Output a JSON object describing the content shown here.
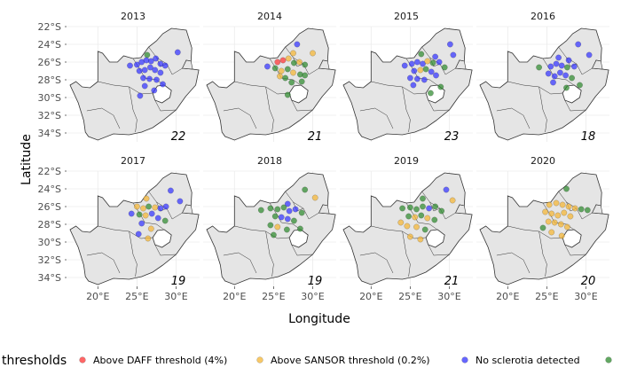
{
  "chart_data": {
    "type": "scatter",
    "xlabel": "Longitude",
    "ylabel": "Latitude",
    "x_ticks": [
      "20°E",
      "25°E",
      "30°E"
    ],
    "y_ticks": [
      "22°S",
      "24°S",
      "26°S",
      "28°S",
      "30°S",
      "32°S",
      "34°S"
    ],
    "xlim": [
      16,
      33
    ],
    "ylim": [
      -35,
      -22
    ],
    "legend": {
      "title": "thresholds",
      "position": "bottom",
      "entries": [
        {
          "label": "Above DAFF threshold (4%)",
          "color": "#ff3333"
        },
        {
          "label": "Above SANSOR threshold (0.2%)",
          "color": "#f5b533"
        },
        {
          "label": "No sclerotia detected",
          "color": "#3333ff"
        },
        {
          "label": "",
          "color": "#2e8b2e"
        }
      ]
    },
    "colors": {
      "red": "#ff3333",
      "orange": "#f5b533",
      "blue": "#3333ff",
      "green": "#2e8b2e",
      "land": "#e5e5e5",
      "border": "#333333",
      "grid": "#ebebeb"
    },
    "panels": [
      {
        "year": "2013",
        "count": "22",
        "points": [
          [
            26.3,
            -25.2,
            "g"
          ],
          [
            30.2,
            -24.9,
            "b"
          ],
          [
            24.1,
            -26.4,
            "b"
          ],
          [
            25.0,
            -26.3,
            "b"
          ],
          [
            25.6,
            -26.0,
            "b"
          ],
          [
            26.2,
            -25.8,
            "b"
          ],
          [
            26.8,
            -25.9,
            "b"
          ],
          [
            27.4,
            -25.6,
            "b"
          ],
          [
            28.0,
            -26.2,
            "b"
          ],
          [
            28.6,
            -26.4,
            "b"
          ],
          [
            25.3,
            -27.0,
            "b"
          ],
          [
            26.0,
            -26.9,
            "b"
          ],
          [
            26.7,
            -26.6,
            "b"
          ],
          [
            27.3,
            -26.9,
            "b"
          ],
          [
            28.0,
            -27.2,
            "b"
          ],
          [
            25.8,
            -27.8,
            "b"
          ],
          [
            26.6,
            -27.9,
            "b"
          ],
          [
            27.5,
            -28.0,
            "b"
          ],
          [
            28.3,
            -28.5,
            "b"
          ],
          [
            26.0,
            -28.7,
            "b"
          ],
          [
            27.2,
            -29.2,
            "b"
          ],
          [
            25.4,
            -29.8,
            "b"
          ]
        ]
      },
      {
        "year": "2014",
        "count": "21",
        "points": [
          [
            28.0,
            -24.0,
            "b"
          ],
          [
            27.5,
            -25.0,
            "o"
          ],
          [
            30.0,
            -25.0,
            "o"
          ],
          [
            25.5,
            -26.0,
            "r"
          ],
          [
            26.2,
            -25.8,
            "r"
          ],
          [
            26.9,
            -25.6,
            "o"
          ],
          [
            27.6,
            -26.1,
            "g"
          ],
          [
            28.3,
            -26.0,
            "o"
          ],
          [
            29.0,
            -26.3,
            "g"
          ],
          [
            24.2,
            -26.5,
            "b"
          ],
          [
            25.2,
            -26.7,
            "g"
          ],
          [
            26.0,
            -27.0,
            "o"
          ],
          [
            26.8,
            -26.8,
            "g"
          ],
          [
            27.5,
            -27.2,
            "o"
          ],
          [
            28.4,
            -27.4,
            "g"
          ],
          [
            29.0,
            -27.5,
            "g"
          ],
          [
            25.8,
            -27.6,
            "o"
          ],
          [
            26.5,
            -27.8,
            "g"
          ],
          [
            27.3,
            -28.3,
            "g"
          ],
          [
            28.6,
            -28.2,
            "g"
          ],
          [
            26.8,
            -29.7,
            "g"
          ]
        ]
      },
      {
        "year": "2015",
        "count": "23",
        "points": [
          [
            30.1,
            -24.0,
            "b"
          ],
          [
            26.4,
            -25.1,
            "g"
          ],
          [
            28.2,
            -25.4,
            "b"
          ],
          [
            30.5,
            -25.2,
            "b"
          ],
          [
            24.3,
            -26.4,
            "b"
          ],
          [
            25.2,
            -26.2,
            "b"
          ],
          [
            25.9,
            -26.0,
            "b"
          ],
          [
            26.6,
            -26.2,
            "b"
          ],
          [
            27.2,
            -25.9,
            "o"
          ],
          [
            27.9,
            -26.1,
            "g"
          ],
          [
            28.7,
            -26.0,
            "b"
          ],
          [
            29.4,
            -26.6,
            "g"
          ],
          [
            25.5,
            -27.0,
            "b"
          ],
          [
            26.3,
            -26.9,
            "o"
          ],
          [
            27.0,
            -26.8,
            "g"
          ],
          [
            27.7,
            -27.1,
            "b"
          ],
          [
            28.3,
            -27.5,
            "b"
          ],
          [
            25.0,
            -27.8,
            "b"
          ],
          [
            25.9,
            -27.9,
            "b"
          ],
          [
            26.8,
            -28.0,
            "b"
          ],
          [
            28.9,
            -28.8,
            "g"
          ],
          [
            25.4,
            -28.6,
            "b"
          ],
          [
            27.6,
            -29.5,
            "g"
          ]
        ]
      },
      {
        "year": "2016",
        "count": "18",
        "points": [
          [
            29.0,
            -24.0,
            "b"
          ],
          [
            26.5,
            -25.5,
            "b"
          ],
          [
            27.8,
            -25.8,
            "b"
          ],
          [
            30.4,
            -25.2,
            "b"
          ],
          [
            24.0,
            -26.6,
            "g"
          ],
          [
            25.5,
            -26.5,
            "b"
          ],
          [
            26.2,
            -26.2,
            "b"
          ],
          [
            26.9,
            -26.4,
            "b"
          ],
          [
            27.6,
            -26.6,
            "g"
          ],
          [
            28.5,
            -26.5,
            "b"
          ],
          [
            25.2,
            -27.3,
            "b"
          ],
          [
            26.0,
            -27.6,
            "b"
          ],
          [
            26.7,
            -27.2,
            "b"
          ],
          [
            27.4,
            -27.5,
            "b"
          ],
          [
            28.2,
            -27.8,
            "g"
          ],
          [
            25.8,
            -28.3,
            "b"
          ],
          [
            27.5,
            -28.9,
            "g"
          ],
          [
            29.2,
            -28.6,
            "g"
          ]
        ]
      },
      {
        "year": "2017",
        "count": "19",
        "points": [
          [
            29.3,
            -24.2,
            "b"
          ],
          [
            26.2,
            -25.1,
            "o"
          ],
          [
            30.5,
            -25.4,
            "b"
          ],
          [
            25.0,
            -26.0,
            "o"
          ],
          [
            25.8,
            -26.2,
            "o"
          ],
          [
            26.5,
            -26.0,
            "g"
          ],
          [
            27.3,
            -26.1,
            "o"
          ],
          [
            28.0,
            -26.2,
            "b"
          ],
          [
            28.7,
            -26.0,
            "b"
          ],
          [
            24.3,
            -26.8,
            "b"
          ],
          [
            25.3,
            -26.9,
            "g"
          ],
          [
            26.1,
            -27.0,
            "o"
          ],
          [
            26.9,
            -26.8,
            "b"
          ],
          [
            27.7,
            -27.3,
            "b"
          ],
          [
            28.6,
            -27.6,
            "g"
          ],
          [
            25.6,
            -27.9,
            "b"
          ],
          [
            26.8,
            -28.5,
            "o"
          ],
          [
            25.2,
            -29.1,
            "b"
          ],
          [
            26.4,
            -29.6,
            "o"
          ]
        ]
      },
      {
        "year": "2018",
        "count": "19",
        "points": [
          [
            29.0,
            -24.1,
            "g"
          ],
          [
            26.8,
            -25.7,
            "b"
          ],
          [
            30.3,
            -25.0,
            "o"
          ],
          [
            23.4,
            -26.4,
            "g"
          ],
          [
            24.6,
            -26.2,
            "g"
          ],
          [
            25.5,
            -26.3,
            "g"
          ],
          [
            26.3,
            -26.1,
            "g"
          ],
          [
            27.0,
            -26.5,
            "b"
          ],
          [
            27.8,
            -26.3,
            "b"
          ],
          [
            28.6,
            -26.7,
            "g"
          ],
          [
            25.2,
            -27.1,
            "g"
          ],
          [
            26.0,
            -27.2,
            "b"
          ],
          [
            26.8,
            -27.4,
            "b"
          ],
          [
            27.6,
            -27.6,
            "g"
          ],
          [
            24.6,
            -28.1,
            "g"
          ],
          [
            25.5,
            -28.3,
            "o"
          ],
          [
            26.7,
            -28.6,
            "g"
          ],
          [
            28.4,
            -28.5,
            "g"
          ],
          [
            25.0,
            -29.2,
            "g"
          ]
        ]
      },
      {
        "year": "2019",
        "count": "21",
        "points": [
          [
            29.6,
            -24.1,
            "b"
          ],
          [
            26.6,
            -25.1,
            "g"
          ],
          [
            30.4,
            -25.3,
            "o"
          ],
          [
            24.0,
            -26.2,
            "g"
          ],
          [
            25.0,
            -26.1,
            "g"
          ],
          [
            25.8,
            -26.3,
            "g"
          ],
          [
            26.6,
            -26.0,
            "g"
          ],
          [
            27.4,
            -26.2,
            "b"
          ],
          [
            28.2,
            -26.0,
            "g"
          ],
          [
            29.0,
            -26.5,
            "g"
          ],
          [
            24.8,
            -27.1,
            "g"
          ],
          [
            25.6,
            -27.2,
            "o"
          ],
          [
            26.4,
            -27.0,
            "g"
          ],
          [
            27.2,
            -27.3,
            "o"
          ],
          [
            28.1,
            -27.5,
            "g"
          ],
          [
            23.8,
            -27.8,
            "o"
          ],
          [
            24.6,
            -28.2,
            "o"
          ],
          [
            25.8,
            -28.3,
            "o"
          ],
          [
            26.9,
            -28.6,
            "g"
          ],
          [
            25.0,
            -29.4,
            "o"
          ],
          [
            26.3,
            -29.7,
            "o"
          ]
        ]
      },
      {
        "year": "2020",
        "count": "20",
        "points": [
          [
            27.5,
            -24.0,
            "g"
          ],
          [
            25.3,
            -25.8,
            "o"
          ],
          [
            26.2,
            -25.6,
            "o"
          ],
          [
            27.0,
            -25.8,
            "o"
          ],
          [
            27.8,
            -26.0,
            "o"
          ],
          [
            28.6,
            -26.2,
            "o"
          ],
          [
            29.4,
            -26.3,
            "g"
          ],
          [
            30.2,
            -26.4,
            "g"
          ],
          [
            24.8,
            -26.6,
            "o"
          ],
          [
            25.6,
            -26.8,
            "o"
          ],
          [
            26.4,
            -27.0,
            "o"
          ],
          [
            27.2,
            -26.7,
            "o"
          ],
          [
            28.0,
            -27.1,
            "o"
          ],
          [
            25.2,
            -27.7,
            "o"
          ],
          [
            26.0,
            -27.8,
            "o"
          ],
          [
            26.8,
            -28.0,
            "o"
          ],
          [
            27.6,
            -28.3,
            "o"
          ],
          [
            24.5,
            -28.4,
            "g"
          ],
          [
            25.6,
            -28.9,
            "o"
          ],
          [
            26.9,
            -29.3,
            "o"
          ]
        ]
      }
    ]
  }
}
